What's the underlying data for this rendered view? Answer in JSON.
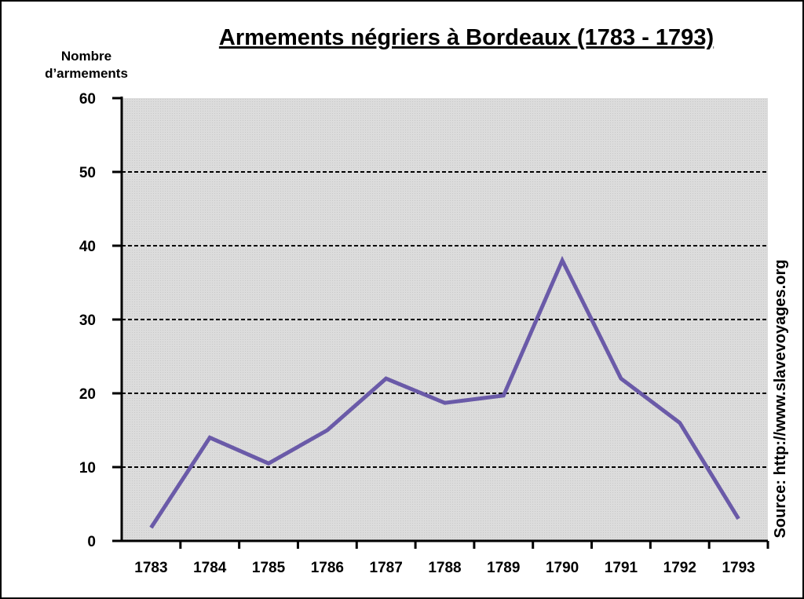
{
  "chart_data": {
    "type": "line",
    "title": "Armements négriers à Bordeaux (1783 - 1793)",
    "ylabel_lines": [
      "Nombre",
      "d’armements"
    ],
    "source": "Source: http://www.slavevoyages.org",
    "categories": [
      "1783",
      "1784",
      "1785",
      "1786",
      "1787",
      "1788",
      "1789",
      "1790",
      "1791",
      "1792",
      "1793"
    ],
    "values": [
      1.8,
      14,
      10.5,
      15,
      22,
      18.7,
      19.7,
      38,
      22,
      16,
      3
    ],
    "color": "#6a5aa8",
    "ylim": [
      0,
      60
    ],
    "yticks": [
      0,
      10,
      20,
      30,
      40,
      50,
      60
    ],
    "grid": true
  }
}
